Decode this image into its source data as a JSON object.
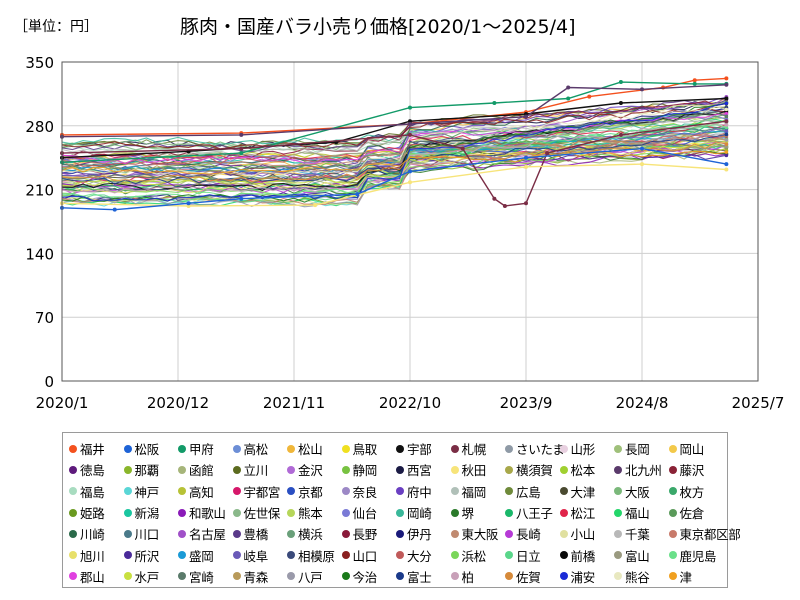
{
  "unit_label": "［単位：円］",
  "chart_title": "豚肉・国産バラ小売り価格[2020/1～2025/4]",
  "chart_data": {
    "type": "line",
    "title": "豚肉・国産バラ小売り価格[2020/1～2025/4]",
    "ylabel": "［単位：円］",
    "xlabel": "",
    "ylim": [
      0,
      350
    ],
    "yticks": [
      0,
      70,
      140,
      210,
      280,
      350
    ],
    "xlim": [
      "2020/1",
      "2025/7"
    ],
    "xticks": [
      "2020/1",
      "2020/12",
      "2021/11",
      "2022/10",
      "2023/9",
      "2024/8",
      "2025/7"
    ],
    "data_range": [
      "2020/1",
      "2025/4"
    ],
    "grid": true,
    "legend_position": "bottom",
    "highlighted_series": [
      {
        "name": "福井",
        "points": [
          [
            "2020/1",
            270
          ],
          [
            "2021/6",
            272
          ],
          [
            "2022/10",
            282
          ],
          [
            "2023/9",
            295
          ],
          [
            "2024/3",
            312
          ],
          [
            "2024/10",
            322
          ],
          [
            "2025/1",
            330
          ],
          [
            "2025/4",
            332
          ]
        ]
      },
      {
        "name": "甲府",
        "points": [
          [
            "2020/1",
            240
          ],
          [
            "2021/6",
            250
          ],
          [
            "2022/10",
            300
          ],
          [
            "2023/6",
            305
          ],
          [
            "2024/1",
            310
          ],
          [
            "2024/6",
            328
          ],
          [
            "2025/1",
            326
          ],
          [
            "2025/4",
            326
          ]
        ]
      },
      {
        "name": "宇部",
        "points": [
          [
            "2020/1",
            245
          ],
          [
            "2021/1",
            252
          ],
          [
            "2022/3",
            262
          ],
          [
            "2022/10",
            285
          ],
          [
            "2023/9",
            293
          ],
          [
            "2024/6",
            305
          ],
          [
            "2025/4",
            310
          ]
        ]
      },
      {
        "name": "札幌",
        "points": [
          [
            "2020/1",
            250
          ],
          [
            "2021/6",
            255
          ],
          [
            "2022/10",
            270
          ],
          [
            "2023/3",
            255
          ],
          [
            "2023/6",
            200
          ],
          [
            "2023/7",
            192
          ],
          [
            "2023/9",
            195
          ],
          [
            "2023/11",
            250
          ],
          [
            "2024/6",
            270
          ],
          [
            "2025/4",
            285
          ]
        ]
      },
      {
        "name": "北九州",
        "points": [
          [
            "2020/1",
            268
          ],
          [
            "2021/6",
            270
          ],
          [
            "2022/10",
            282
          ],
          [
            "2023/9",
            290
          ],
          [
            "2024/1",
            322
          ],
          [
            "2024/8",
            320
          ],
          [
            "2025/4",
            325
          ]
        ]
      },
      {
        "name": "秋田",
        "points": [
          [
            "2020/1",
            195
          ],
          [
            "2021/1",
            192
          ],
          [
            "2022/1",
            193
          ],
          [
            "2022/10",
            218
          ],
          [
            "2023/9",
            235
          ],
          [
            "2024/8",
            238
          ],
          [
            "2025/4",
            232
          ]
        ]
      },
      {
        "name": "松阪",
        "points": [
          [
            "2020/1",
            190
          ],
          [
            "2020/6",
            188
          ],
          [
            "2021/1",
            195
          ],
          [
            "2021/6",
            200
          ],
          [
            "2022/5",
            205
          ],
          [
            "2022/10",
            230
          ],
          [
            "2023/9",
            245
          ],
          [
            "2024/8",
            255
          ],
          [
            "2025/4",
            238
          ]
        ]
      }
    ],
    "series_band": {
      "start": {
        "x": "2020/1",
        "low": 175,
        "high": 272
      },
      "end": {
        "x": "2025/4",
        "low": 228,
        "high": 332
      }
    }
  },
  "legend": [
    {
      "name": "福井",
      "color": "#f4511e"
    },
    {
      "name": "松阪",
      "color": "#1e63d6"
    },
    {
      "name": "甲府",
      "color": "#129a68"
    },
    {
      "name": "高松",
      "color": "#6c8ed6"
    },
    {
      "name": "松山",
      "color": "#f0b73a"
    },
    {
      "name": "鳥取",
      "color": "#f0e020"
    },
    {
      "name": "宇部",
      "color": "#111111"
    },
    {
      "name": "札幌",
      "color": "#7a2d45"
    },
    {
      "name": "さいたま",
      "color": "#8f9aa6"
    },
    {
      "name": "山形",
      "color": "#e8d0e0"
    },
    {
      "name": "長岡",
      "color": "#9fc07a"
    },
    {
      "name": "岡山",
      "color": "#f3c94a"
    },
    {
      "name": "徳島",
      "color": "#5e1a7c"
    },
    {
      "name": "那覇",
      "color": "#8ab62b"
    },
    {
      "name": "函館",
      "color": "#a6b57a"
    },
    {
      "name": "立川",
      "color": "#5c6b1f"
    },
    {
      "name": "金沢",
      "color": "#b06ad6"
    },
    {
      "name": "静岡",
      "color": "#78c241"
    },
    {
      "name": "西宮",
      "color": "#1b1b45"
    },
    {
      "name": "秋田",
      "color": "#f7e47a"
    },
    {
      "name": "横須賀",
      "color": "#a8a84a"
    },
    {
      "name": "松本",
      "color": "#a0d030"
    },
    {
      "name": "北九州",
      "color": "#5a3a6b"
    },
    {
      "name": "藤沢",
      "color": "#8a2236"
    },
    {
      "name": "福島",
      "color": "#a8dcc0"
    },
    {
      "name": "神戸",
      "color": "#5ad6d6"
    },
    {
      "name": "高知",
      "color": "#b7c236"
    },
    {
      "name": "宇都宮",
      "color": "#d6176a"
    },
    {
      "name": "京都",
      "color": "#2a4fc2"
    },
    {
      "name": "奈良",
      "color": "#9c88c6"
    },
    {
      "name": "府中",
      "color": "#6a3fc2"
    },
    {
      "name": "福岡",
      "color": "#b0c0b8"
    },
    {
      "name": "広島",
      "color": "#6f8a3a"
    },
    {
      "name": "大津",
      "color": "#4a4a30"
    },
    {
      "name": "大阪",
      "color": "#7ab87a"
    },
    {
      "name": "枚方",
      "color": "#3aa86a"
    },
    {
      "name": "姫路",
      "color": "#6a9a20"
    },
    {
      "name": "新潟",
      "color": "#1ac6a0"
    },
    {
      "name": "和歌山",
      "color": "#8a1ab8"
    },
    {
      "name": "佐世保",
      "color": "#8ab88a"
    },
    {
      "name": "熊本",
      "color": "#b6d65a"
    },
    {
      "name": "仙台",
      "color": "#7a7ad6"
    },
    {
      "name": "岡崎",
      "color": "#3ab89a"
    },
    {
      "name": "堺",
      "color": "#2a7a2a"
    },
    {
      "name": "八王子",
      "color": "#1ab86a"
    },
    {
      "name": "松江",
      "color": "#e0244a"
    },
    {
      "name": "福山",
      "color": "#24d66a"
    },
    {
      "name": "佐倉",
      "color": "#5a9a5a"
    },
    {
      "name": "川崎",
      "color": "#2a6a4a"
    },
    {
      "name": "川口",
      "color": "#4a7a8a"
    },
    {
      "name": "名古屋",
      "color": "#a050c8"
    },
    {
      "name": "豊橋",
      "color": "#5a3a8a"
    },
    {
      "name": "横浜",
      "color": "#6aa07a"
    },
    {
      "name": "長野",
      "color": "#8a1a3a"
    },
    {
      "name": "伊丹",
      "color": "#1a1a7a"
    },
    {
      "name": "東大阪",
      "color": "#c08a70"
    },
    {
      "name": "長崎",
      "color": "#b63ad6"
    },
    {
      "name": "小山",
      "color": "#e0e0a0"
    },
    {
      "name": "千葉",
      "color": "#b8b8b8"
    },
    {
      "name": "東京都区部",
      "color": "#c87a6a"
    },
    {
      "name": "旭川",
      "color": "#e8e06a"
    },
    {
      "name": "所沢",
      "color": "#4a2a9a"
    },
    {
      "name": "盛岡",
      "color": "#1a9ad6"
    },
    {
      "name": "岐阜",
      "color": "#6a5ab8"
    },
    {
      "name": "相模原",
      "color": "#3a4a7a"
    },
    {
      "name": "山口",
      "color": "#8a2020"
    },
    {
      "name": "大分",
      "color": "#c05a5a"
    },
    {
      "name": "浜松",
      "color": "#7ad65a"
    },
    {
      "name": "日立",
      "color": "#5ad68a"
    },
    {
      "name": "前橋",
      "color": "#0a0a0a"
    },
    {
      "name": "富山",
      "color": "#9a9a80"
    },
    {
      "name": "鹿児島",
      "color": "#6ae08a"
    },
    {
      "name": "郡山",
      "color": "#e040e0"
    },
    {
      "name": "水戸",
      "color": "#c8e040"
    },
    {
      "name": "宮崎",
      "color": "#5a7a6a"
    },
    {
      "name": "青森",
      "color": "#b89a5a"
    },
    {
      "name": "八戸",
      "color": "#9a9aaa"
    },
    {
      "name": "今治",
      "color": "#1a7a1a"
    },
    {
      "name": "富士",
      "color": "#1a3a8a"
    },
    {
      "name": "柏",
      "color": "#c8a0b8"
    },
    {
      "name": "佐賀",
      "color": "#d68a3a"
    },
    {
      "name": "浦安",
      "color": "#1a2ad6"
    },
    {
      "name": "熊谷",
      "color": "#e8e8c0"
    },
    {
      "name": "津",
      "color": "#f0a020"
    }
  ]
}
